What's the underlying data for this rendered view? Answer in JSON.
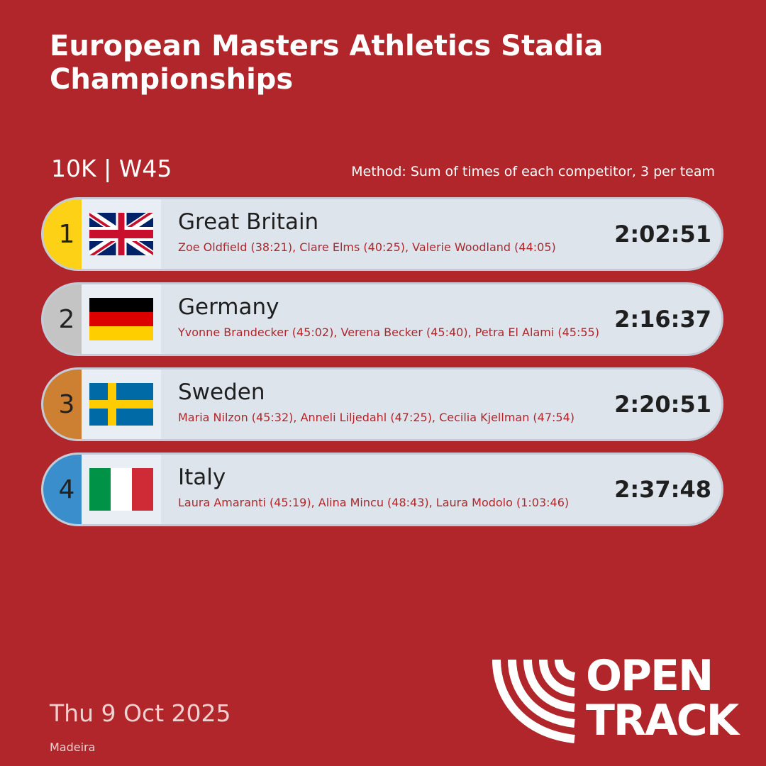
{
  "title": "European Masters Athletics Stadia Championships",
  "event": "10K | W45",
  "method": "Method: Sum of times of each competitor, 3 per team",
  "colors": {
    "background": "#b0262a",
    "gold": "#fcd116",
    "silver": "#c4c4c4",
    "bronze": "#cd7f32",
    "fourth": "#3a8ecb"
  },
  "results": [
    {
      "rank": "1",
      "country": "Great Britain",
      "flag": "uk-flag-icon",
      "members": "Zoe Oldfield (38:21), Clare Elms (40:25), Valerie Woodland (44:05)",
      "time": "2:02:51"
    },
    {
      "rank": "2",
      "country": "Germany",
      "flag": "germany-flag-icon",
      "members": "Yvonne Brandecker (45:02), Verena Becker (45:40), Petra El Alami (45:55)",
      "time": "2:16:37"
    },
    {
      "rank": "3",
      "country": "Sweden",
      "flag": "sweden-flag-icon",
      "members": "Maria Nilzon (45:32), Anneli Liljedahl (47:25), Cecilia Kjellman (47:54)",
      "time": "2:20:51"
    },
    {
      "rank": "4",
      "country": "Italy",
      "flag": "italy-flag-icon",
      "members": "Laura Amaranti (45:19), Alina Mincu (48:43), Laura Modolo (1:03:46)",
      "time": "2:37:48"
    }
  ],
  "date": "Thu 9 Oct 2025",
  "venue": "Madeira",
  "logo": {
    "line1": "OPEN",
    "line2": "TRACK"
  }
}
